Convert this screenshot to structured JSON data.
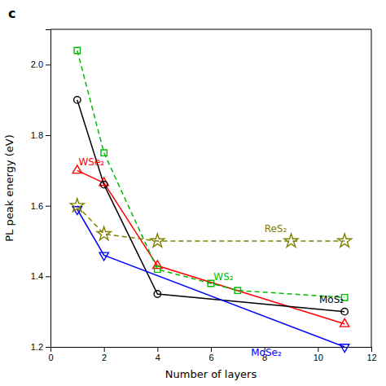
{
  "chart_data": {
    "type": "line",
    "title": "c",
    "x_label": "Number of layers",
    "y_label": "PL peak energy (eV)",
    "xlim": [
      0,
      12
    ],
    "ylim": [
      1.2,
      2.1
    ],
    "xticks": [
      0,
      2,
      4,
      6,
      8,
      10,
      12
    ],
    "yticks": [
      1.2,
      1.4,
      1.6,
      1.8,
      {
        "value": 2.0,
        "label": "2.0"
      }
    ],
    "series": [
      {
        "color": "red",
        "marker": "triangle-up",
        "line_style": "solid",
        "x": [
          1,
          2,
          4,
          11
        ],
        "values": [
          1.7,
          1.665,
          1.43,
          1.265
        ]
      },
      {
        "color": "#00bb00",
        "marker": "square",
        "line_style": "dashed",
        "x": [
          1,
          2,
          4,
          6,
          7,
          11
        ],
        "values": [
          2.04,
          1.75,
          1.42,
          1.38,
          1.36,
          1.34
        ]
      },
      {
        "color": "black",
        "marker": "circle",
        "line_style": "solid",
        "x": [
          1,
          2,
          4,
          11
        ],
        "values": [
          1.9,
          1.66,
          1.35,
          1.3
        ]
      },
      {
        "color": "blue",
        "marker": "triangle-down",
        "line_style": "solid",
        "x": [
          1,
          2,
          11
        ],
        "values": [
          1.59,
          1.46,
          1.2
        ]
      },
      {
        "color": "#808000",
        "marker": "star",
        "line_style": "dashed",
        "x": [
          1,
          2,
          4,
          9,
          11
        ],
        "values": [
          1.6,
          1.52,
          1.5,
          1.5,
          1.5
        ]
      }
    ],
    "annotations": [
      {
        "text": "WSe₂",
        "x": 1.05,
        "y": 1.715,
        "color": "red"
      },
      {
        "text": "WS₂",
        "x": 6.1,
        "y": 1.39,
        "color": "#00bb00"
      },
      {
        "text": "MoS₂",
        "x": 10.05,
        "y": 1.325,
        "color": "black"
      },
      {
        "text": "MoSe₂",
        "x": 7.5,
        "y": 1.175,
        "color": "blue"
      },
      {
        "text": "ReS₂",
        "x": 8.0,
        "y": 1.525,
        "color": "#808000"
      }
    ]
  }
}
